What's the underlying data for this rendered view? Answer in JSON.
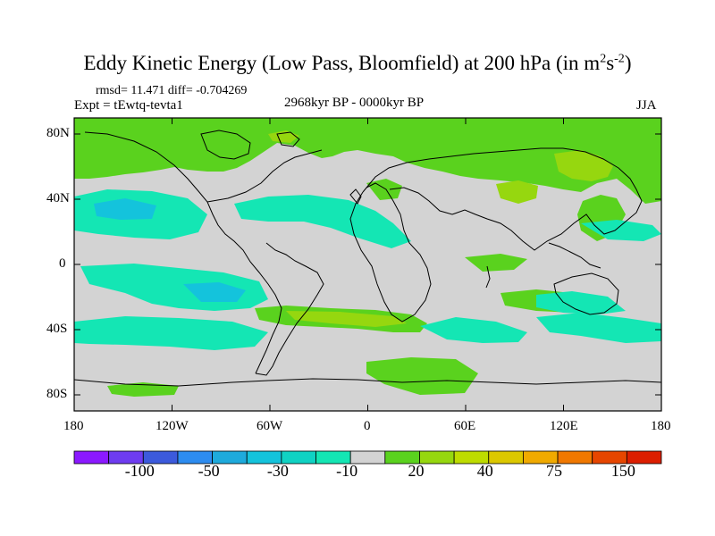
{
  "title": {
    "main": "Eddy Kinetic Energy (Low Pass, Bloomfield) at 200 hPa (in m",
    "sup1": "2",
    "mid": "s",
    "sup2": "-2",
    "end": ")"
  },
  "stats": "rmsd= 11.471 diff= -0.704269",
  "experiment": "Expt = tEwtq-tevta1",
  "period": "2968kyr BP - 0000kyr BP",
  "season": "JJA",
  "y_ticks": [
    "80N",
    "40N",
    "0",
    "40S",
    "80S"
  ],
  "x_ticks": [
    "180",
    "120W",
    "60W",
    "0",
    "60E",
    "120E",
    "180"
  ],
  "colorbar": {
    "colors": [
      "#8b19ff",
      "#6e3cf0",
      "#3c5adc",
      "#2d8cf0",
      "#1eaadc",
      "#14c3dc",
      "#10d2c3",
      "#14e6b4",
      "#d3d3d3",
      "#5ad21e",
      "#96d70f",
      "#bedc00",
      "#dcc800",
      "#f0aa00",
      "#f07800",
      "#e64600",
      "#dc1e00"
    ],
    "labels": [
      {
        "text": "-100",
        "boundary": 2
      },
      {
        "text": "-50",
        "boundary": 4
      },
      {
        "text": "-30",
        "boundary": 6
      },
      {
        "text": "-10",
        "boundary": 8
      },
      {
        "text": "20",
        "boundary": 10
      },
      {
        "text": "40",
        "boundary": 12
      },
      {
        "text": "75",
        "boundary": 14
      },
      {
        "text": "150",
        "boundary": 16
      }
    ]
  },
  "fill_colors": {
    "background": "#d3d3d3",
    "green": "#5ad21e",
    "yellow_green": "#96d70f",
    "cyan": "#14c3dc",
    "teal": "#14e6b4"
  }
}
